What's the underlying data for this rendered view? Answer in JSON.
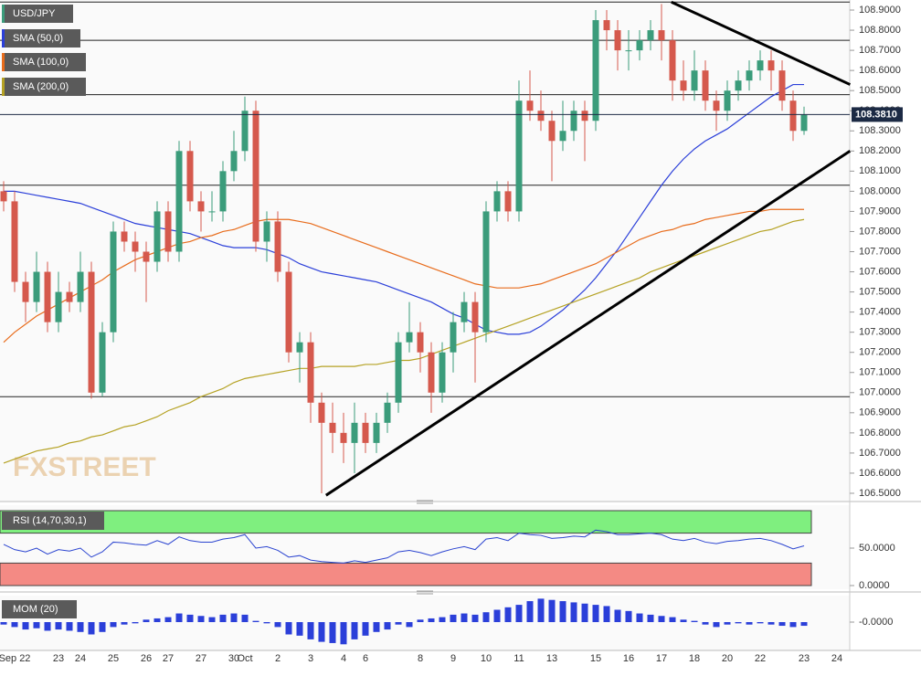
{
  "chart_data": [
    {
      "type": "candlestick",
      "name": "USD/JPY",
      "watermark": "FXSTREET",
      "up_color": "#3b9c7b",
      "down_color": "#d5594d",
      "categories": [
        null,
        "Sep 22",
        null,
        null,
        null,
        "23",
        null,
        "24",
        null,
        null,
        "25",
        null,
        null,
        "26",
        null,
        "27",
        null,
        null,
        "27",
        null,
        null,
        "30",
        "Oct",
        null,
        null,
        "2",
        null,
        null,
        "3",
        null,
        null,
        "4",
        null,
        "6",
        null,
        null,
        null,
        null,
        "8",
        null,
        null,
        "9",
        null,
        null,
        "10",
        null,
        null,
        "11",
        null,
        null,
        "13",
        null,
        null,
        null,
        "15",
        null,
        null,
        "16",
        null,
        null,
        "17",
        null,
        null,
        "18",
        null,
        null,
        "20",
        null,
        null,
        "22",
        null,
        null,
        null,
        "23",
        null,
        null,
        "24"
      ],
      "open": [
        108.0,
        107.95,
        107.55,
        107.45,
        107.6,
        107.35,
        107.5,
        107.45,
        107.6,
        107.0,
        107.3,
        107.8,
        107.75,
        107.7,
        107.65,
        107.9,
        107.7,
        108.2,
        107.95,
        107.9,
        107.9,
        108.1,
        108.2,
        108.4,
        107.75,
        107.85,
        107.6,
        107.2,
        107.25,
        106.95,
        106.85,
        106.8,
        106.75,
        106.85,
        106.75,
        106.85,
        106.95,
        107.25,
        107.3,
        107.2,
        107.0,
        107.2,
        107.35,
        107.45,
        107.3,
        107.9,
        108.0,
        107.9,
        108.45,
        108.4,
        108.35,
        108.25,
        108.3,
        108.4,
        108.35,
        108.85,
        108.8,
        108.7,
        108.7,
        108.75,
        108.8,
        108.75,
        108.55,
        108.5,
        108.6,
        108.45,
        108.4,
        108.5,
        108.55,
        108.6,
        108.65,
        108.6,
        108.45,
        108.3,
        null,
        null,
        null
      ],
      "high": [
        108.05,
        108.0,
        107.6,
        107.7,
        107.65,
        107.6,
        107.55,
        107.7,
        107.65,
        107.35,
        107.85,
        107.85,
        107.8,
        107.75,
        107.95,
        107.95,
        108.25,
        108.25,
        108.0,
        108.0,
        108.15,
        108.3,
        108.47,
        108.45,
        107.9,
        107.9,
        107.65,
        107.3,
        107.3,
        107.0,
        106.95,
        106.9,
        106.95,
        106.9,
        106.9,
        107.0,
        107.3,
        107.45,
        107.35,
        107.25,
        107.25,
        107.4,
        107.5,
        107.5,
        107.95,
        108.05,
        108.05,
        108.55,
        108.6,
        108.5,
        108.4,
        108.45,
        108.45,
        108.45,
        108.9,
        108.9,
        108.85,
        108.8,
        108.8,
        108.85,
        108.93,
        108.8,
        108.65,
        108.7,
        108.65,
        108.5,
        108.55,
        108.6,
        108.65,
        108.7,
        108.7,
        108.65,
        108.5,
        108.42,
        null,
        null,
        null
      ],
      "low": [
        107.9,
        107.5,
        107.35,
        107.4,
        107.3,
        107.3,
        107.4,
        107.4,
        106.97,
        106.98,
        107.25,
        107.7,
        107.6,
        107.45,
        107.6,
        107.65,
        107.65,
        107.9,
        107.8,
        107.85,
        107.85,
        108.05,
        108.15,
        107.7,
        107.65,
        107.55,
        107.15,
        107.05,
        106.85,
        106.5,
        106.7,
        106.65,
        106.6,
        106.7,
        106.7,
        106.8,
        106.9,
        107.2,
        107.1,
        106.9,
        106.95,
        107.1,
        107.3,
        107.05,
        107.25,
        107.85,
        107.85,
        107.85,
        108.35,
        108.3,
        108.05,
        108.2,
        108.25,
        108.15,
        108.3,
        108.7,
        108.6,
        108.6,
        108.65,
        108.7,
        108.65,
        108.45,
        108.45,
        108.45,
        108.4,
        108.3,
        108.35,
        108.45,
        108.5,
        108.55,
        108.5,
        108.4,
        108.25,
        108.28,
        null,
        null,
        null
      ],
      "close": [
        107.95,
        107.55,
        107.45,
        107.6,
        107.35,
        107.5,
        107.45,
        107.6,
        107.0,
        107.3,
        107.8,
        107.75,
        107.7,
        107.65,
        107.9,
        107.7,
        108.2,
        107.95,
        107.9,
        107.9,
        108.1,
        108.2,
        108.4,
        107.75,
        107.85,
        107.6,
        107.2,
        107.25,
        106.95,
        106.85,
        106.8,
        106.75,
        106.85,
        106.75,
        106.85,
        106.95,
        107.25,
        107.3,
        107.2,
        107.0,
        107.2,
        107.35,
        107.45,
        107.3,
        107.9,
        108.0,
        107.9,
        108.45,
        108.4,
        108.35,
        108.25,
        108.3,
        108.4,
        108.35,
        108.85,
        108.8,
        108.7,
        108.7,
        108.75,
        108.8,
        108.75,
        108.55,
        108.5,
        108.6,
        108.45,
        108.4,
        108.5,
        108.55,
        108.6,
        108.65,
        108.6,
        108.45,
        108.3,
        108.38,
        null,
        null,
        null
      ],
      "series": [
        {
          "name": "SMA (50,0)",
          "color": "#2b3fd9",
          "values": [
            108.0,
            108.0,
            107.99,
            107.98,
            107.97,
            107.96,
            107.95,
            107.94,
            107.92,
            107.9,
            107.88,
            107.86,
            107.84,
            107.83,
            107.82,
            107.81,
            107.8,
            107.79,
            107.77,
            107.75,
            107.73,
            107.72,
            107.72,
            107.72,
            107.71,
            107.69,
            107.67,
            107.64,
            107.62,
            107.6,
            107.59,
            107.58,
            107.57,
            107.56,
            107.55,
            107.53,
            107.51,
            107.49,
            107.47,
            107.45,
            107.42,
            107.39,
            107.37,
            107.34,
            107.31,
            107.3,
            107.29,
            107.29,
            107.3,
            107.33,
            107.37,
            107.41,
            107.46,
            107.51,
            107.57,
            107.64,
            107.71,
            107.79,
            107.87,
            107.95,
            108.03,
            108.1,
            108.16,
            108.21,
            108.25,
            108.28,
            108.31,
            108.35,
            108.39,
            108.43,
            108.47,
            108.5,
            108.53,
            108.53,
            null,
            null,
            null
          ]
        },
        {
          "name": "SMA (100,0)",
          "color": "#e86c1c",
          "values": [
            107.25,
            107.3,
            107.34,
            107.38,
            107.41,
            107.44,
            107.47,
            107.5,
            107.53,
            107.56,
            107.6,
            107.63,
            107.66,
            107.68,
            107.7,
            107.72,
            107.74,
            107.75,
            107.77,
            107.78,
            107.8,
            107.81,
            107.83,
            107.85,
            107.86,
            107.86,
            107.86,
            107.85,
            107.84,
            107.82,
            107.8,
            107.78,
            107.76,
            107.74,
            107.72,
            107.7,
            107.68,
            107.66,
            107.64,
            107.62,
            107.6,
            107.58,
            107.56,
            107.54,
            107.53,
            107.52,
            107.52,
            107.52,
            107.53,
            107.54,
            107.56,
            107.58,
            107.6,
            107.62,
            107.64,
            107.67,
            107.7,
            107.73,
            107.76,
            107.78,
            107.8,
            107.81,
            107.83,
            107.84,
            107.86,
            107.87,
            107.88,
            107.89,
            107.9,
            107.9,
            107.91,
            107.91,
            107.91,
            107.91,
            null,
            null,
            null
          ]
        },
        {
          "name": "SMA (200,0)",
          "color": "#b5a224",
          "values": [
            106.65,
            106.67,
            106.69,
            106.71,
            106.72,
            106.73,
            106.75,
            106.76,
            106.78,
            106.79,
            106.81,
            106.83,
            106.84,
            106.86,
            106.88,
            106.91,
            106.93,
            106.95,
            106.98,
            107.0,
            107.02,
            107.05,
            107.07,
            107.08,
            107.09,
            107.1,
            107.11,
            107.12,
            107.12,
            107.13,
            107.13,
            107.13,
            107.13,
            107.14,
            107.14,
            107.15,
            107.16,
            107.16,
            107.17,
            107.19,
            107.21,
            107.23,
            107.25,
            107.27,
            107.29,
            107.31,
            107.33,
            107.35,
            107.37,
            107.39,
            107.41,
            107.43,
            107.45,
            107.47,
            107.49,
            107.51,
            107.53,
            107.55,
            107.57,
            107.6,
            107.62,
            107.64,
            107.66,
            107.68,
            107.7,
            107.72,
            107.74,
            107.76,
            107.78,
            107.8,
            107.81,
            107.83,
            107.85,
            107.86,
            null,
            null,
            null
          ]
        }
      ],
      "ylim": [
        106.45,
        108.95
      ],
      "yticks": [
        {
          "value": 106.5,
          "label": "106.5000"
        },
        {
          "value": 106.6,
          "label": "106.6000"
        },
        {
          "value": 106.7,
          "label": "106.7000"
        },
        {
          "value": 106.8,
          "label": "106.8000"
        },
        {
          "value": 106.9,
          "label": "106.9000"
        },
        {
          "value": 107.0,
          "label": "107.0000"
        },
        {
          "value": 107.1,
          "label": "107.1000"
        },
        {
          "value": 107.2,
          "label": "107.2000"
        },
        {
          "value": 107.3,
          "label": "107.3000"
        },
        {
          "value": 107.4,
          "label": "107.4000"
        },
        {
          "value": 107.5,
          "label": "107.5000"
        },
        {
          "value": 107.6,
          "label": "107.6000"
        },
        {
          "value": 107.7,
          "label": "107.7000"
        },
        {
          "value": 107.8,
          "label": "107.8000"
        },
        {
          "value": 107.9,
          "label": "107.9000"
        },
        {
          "value": 108.0,
          "label": "108.0000"
        },
        {
          "value": 108.1,
          "label": "108.1000"
        },
        {
          "value": 108.2,
          "label": "108.2000"
        },
        {
          "value": 108.3,
          "label": "108.3000"
        },
        {
          "value": 108.4,
          "label": "108.4000"
        },
        {
          "value": 108.5,
          "label": "108.5000"
        },
        {
          "value": 108.6,
          "label": "108.6000"
        },
        {
          "value": 108.7,
          "label": "108.7000"
        },
        {
          "value": 108.8,
          "label": "108.8000"
        },
        {
          "value": 108.9,
          "label": "108.9000"
        }
      ],
      "last_price": {
        "value": 108.381,
        "label": "108.3810"
      },
      "levels": [
        108.94,
        108.75,
        108.48,
        108.03,
        106.98
      ],
      "trendlines": [
        {
          "x": [
            29.4,
            77.2
          ],
          "y": [
            106.49,
            108.2
          ]
        },
        {
          "x": [
            60.9,
            77.2
          ],
          "y": [
            108.94,
            108.53
          ]
        }
      ]
    },
    {
      "type": "line",
      "name": "RSI (14,70,30,1)",
      "color": "#2b44d0",
      "overbought": 70,
      "oversold": 30,
      "ylim": [
        0,
        100
      ],
      "yticks": [
        {
          "value": 50,
          "label": "50.0000"
        },
        {
          "value": 0,
          "label": "0.0000"
        }
      ],
      "values": [
        55,
        48,
        45,
        50,
        42,
        48,
        46,
        50,
        38,
        45,
        58,
        57,
        55,
        54,
        60,
        55,
        65,
        60,
        58,
        58,
        62,
        64,
        68,
        50,
        52,
        47,
        38,
        40,
        34,
        32,
        31,
        30,
        33,
        31,
        34,
        37,
        45,
        47,
        44,
        40,
        45,
        49,
        52,
        48,
        62,
        64,
        60,
        70,
        68,
        67,
        63,
        64,
        66,
        65,
        74,
        72,
        68,
        68,
        69,
        70,
        68,
        62,
        60,
        63,
        58,
        56,
        59,
        60,
        62,
        63,
        60,
        55,
        49,
        53,
        null,
        null,
        null
      ]
    },
    {
      "type": "bar",
      "name": "MOM (20)",
      "color": "#2b3fd9",
      "ylim": [
        -1,
        1
      ],
      "yticks": [
        {
          "value": 0,
          "label": "-0.0000"
        }
      ],
      "values": [
        -0.1,
        -0.2,
        -0.3,
        -0.25,
        -0.35,
        -0.3,
        -0.35,
        -0.4,
        -0.5,
        -0.4,
        -0.2,
        -0.1,
        -0.05,
        0.1,
        0.15,
        0.2,
        0.35,
        0.3,
        0.25,
        0.2,
        0.3,
        0.35,
        0.3,
        0.05,
        -0.05,
        -0.2,
        -0.5,
        -0.55,
        -0.7,
        -0.8,
        -0.85,
        -0.9,
        -0.7,
        -0.55,
        -0.4,
        -0.3,
        -0.1,
        -0.2,
        0.1,
        0.15,
        0.2,
        0.3,
        0.35,
        0.3,
        0.4,
        0.5,
        0.6,
        0.7,
        0.85,
        0.95,
        0.9,
        0.85,
        0.8,
        0.75,
        0.7,
        0.65,
        0.5,
        0.45,
        0.35,
        0.3,
        0.25,
        0.2,
        0.1,
        0.05,
        -0.1,
        -0.2,
        -0.1,
        -0.05,
        -0.1,
        -0.05,
        -0.1,
        -0.15,
        -0.2,
        -0.15,
        null,
        null,
        null
      ]
    }
  ]
}
